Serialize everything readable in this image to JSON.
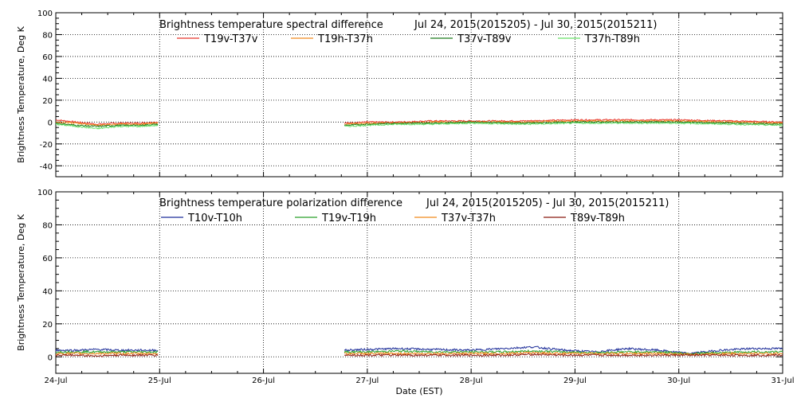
{
  "chart_data": [
    {
      "type": "line",
      "title": "Brightness temperature spectral difference",
      "subtitle": "Jul 24, 2015(2015205) - Jul 30, 2015(2015211)",
      "ylabel": "Brightness Temperature, Deg K",
      "xlabel": "",
      "xlim": [
        0,
        7
      ],
      "ylim": [
        -50,
        100
      ],
      "yticks": [
        -40,
        -20,
        0,
        20,
        40,
        60,
        80,
        100
      ],
      "xticks": [
        0,
        1,
        2,
        3,
        4,
        5,
        6,
        7
      ],
      "xtick_labels": [],
      "grid": true,
      "legend_position": "top",
      "gaps": [
        [
          0.99,
          2.78
        ]
      ],
      "series": [
        {
          "name": "T19v-T37v",
          "color": "#e8352a",
          "x": [
            0,
            0.2,
            0.4,
            0.6,
            0.8,
            0.99,
            2.78,
            3.0,
            3.3,
            3.6,
            4.0,
            4.5,
            5.0,
            5.5,
            6.0,
            6.5,
            7.0
          ],
          "values": [
            2,
            0,
            -2,
            -1,
            -1,
            0,
            -1,
            0,
            0,
            1,
            1,
            1,
            2,
            2,
            2,
            1,
            0
          ]
        },
        {
          "name": "T19h-T37h",
          "color": "#f08a1c",
          "x": [
            0,
            0.2,
            0.4,
            0.6,
            0.8,
            0.99,
            2.78,
            3.0,
            3.3,
            3.6,
            4.0,
            4.5,
            5.0,
            5.5,
            6.0,
            6.5,
            7.0
          ],
          "values": [
            0,
            -1,
            -3,
            -2,
            -2,
            -1,
            -2,
            -1,
            -1,
            0,
            0,
            0,
            1,
            1,
            1,
            0,
            -1
          ]
        },
        {
          "name": "T37v-T89v",
          "color": "#1a7a1a",
          "x": [
            0,
            0.2,
            0.4,
            0.6,
            0.8,
            0.99,
            2.78,
            3.0,
            3.3,
            3.6,
            4.0,
            4.5,
            5.0,
            5.5,
            6.0,
            6.5,
            7.0
          ],
          "values": [
            -1,
            -3,
            -4,
            -3,
            -3,
            -2,
            -3,
            -2,
            -1,
            -1,
            0,
            -1,
            0,
            0,
            0,
            -1,
            -2
          ]
        },
        {
          "name": "T37h-T89h",
          "color": "#66e066",
          "x": [
            0,
            0.2,
            0.4,
            0.6,
            0.8,
            0.99,
            2.78,
            3.0,
            3.3,
            3.6,
            4.0,
            4.5,
            5.0,
            5.5,
            6.0,
            6.5,
            7.0
          ],
          "values": [
            -2,
            -4,
            -6,
            -4,
            -4,
            -3,
            -4,
            -3,
            -2,
            -2,
            -1,
            -2,
            -1,
            -1,
            -1,
            -2,
            -3
          ]
        }
      ]
    },
    {
      "type": "line",
      "title": "Brightness temperature polarization difference",
      "subtitle": "Jul 24, 2015(2015205) - Jul 30, 2015(2015211)",
      "ylabel": "Brightness Temperature, Deg K",
      "xlabel": "Date (EST)",
      "xlim": [
        0,
        7
      ],
      "ylim": [
        -10,
        100
      ],
      "yticks": [
        0,
        20,
        40,
        60,
        80,
        100
      ],
      "xticks": [
        0,
        1,
        2,
        3,
        4,
        5,
        6,
        7
      ],
      "xtick_labels": [
        "24-Jul",
        "25-Jul",
        "26-Jul",
        "27-Jul",
        "28-Jul",
        "29-Jul",
        "30-Jul",
        "31-Jul"
      ],
      "grid": true,
      "legend_position": "top",
      "gaps": [
        [
          0.99,
          2.78
        ]
      ],
      "series": [
        {
          "name": "T10v-T10h",
          "color": "#1f2f9a",
          "x": [
            0,
            0.2,
            0.4,
            0.6,
            0.8,
            0.99,
            2.78,
            3.0,
            3.3,
            3.6,
            4.0,
            4.3,
            4.6,
            4.9,
            5.2,
            5.5,
            5.8,
            6.1,
            6.4,
            6.7,
            7.0
          ],
          "values": [
            4,
            4,
            4.5,
            4,
            4,
            4,
            4,
            4.5,
            5,
            4.5,
            4,
            5,
            6,
            4,
            3,
            5,
            4,
            2,
            4,
            5,
            5
          ]
        },
        {
          "name": "T19v-T19h",
          "color": "#2aa02a",
          "x": [
            0,
            0.2,
            0.4,
            0.6,
            0.8,
            0.99,
            2.78,
            3.0,
            3.3,
            3.6,
            4.0,
            4.3,
            4.6,
            4.9,
            5.2,
            5.5,
            5.8,
            6.1,
            6.4,
            6.7,
            7.0
          ],
          "values": [
            3,
            3,
            3,
            3,
            3,
            3,
            3,
            3,
            3.5,
            3,
            3,
            3,
            3.5,
            3,
            2.5,
            3,
            3,
            2,
            2.5,
            3,
            3
          ]
        },
        {
          "name": "T37v-T37h",
          "color": "#f08a1c",
          "x": [
            0,
            0.2,
            0.4,
            0.6,
            0.8,
            0.99,
            2.78,
            3.0,
            3.3,
            3.6,
            4.0,
            4.3,
            4.6,
            4.9,
            5.2,
            5.5,
            5.8,
            6.1,
            6.4,
            6.7,
            7.0
          ],
          "values": [
            2,
            2,
            2,
            2,
            2,
            2,
            2,
            2,
            2,
            2,
            2,
            2,
            2.5,
            2,
            2,
            2,
            2,
            1.5,
            2,
            2,
            2
          ]
        },
        {
          "name": "T89v-T89h",
          "color": "#8b1a10",
          "x": [
            0,
            0.2,
            0.4,
            0.6,
            0.8,
            0.99,
            2.78,
            3.0,
            3.3,
            3.6,
            4.0,
            4.3,
            4.6,
            4.9,
            5.2,
            5.5,
            5.8,
            6.1,
            6.4,
            6.7,
            7.0
          ],
          "values": [
            1,
            1,
            0.5,
            1,
            1,
            1,
            1,
            1,
            1,
            1,
            1,
            1,
            1.5,
            1,
            1,
            1,
            1,
            1,
            1,
            1,
            1
          ]
        }
      ]
    }
  ]
}
